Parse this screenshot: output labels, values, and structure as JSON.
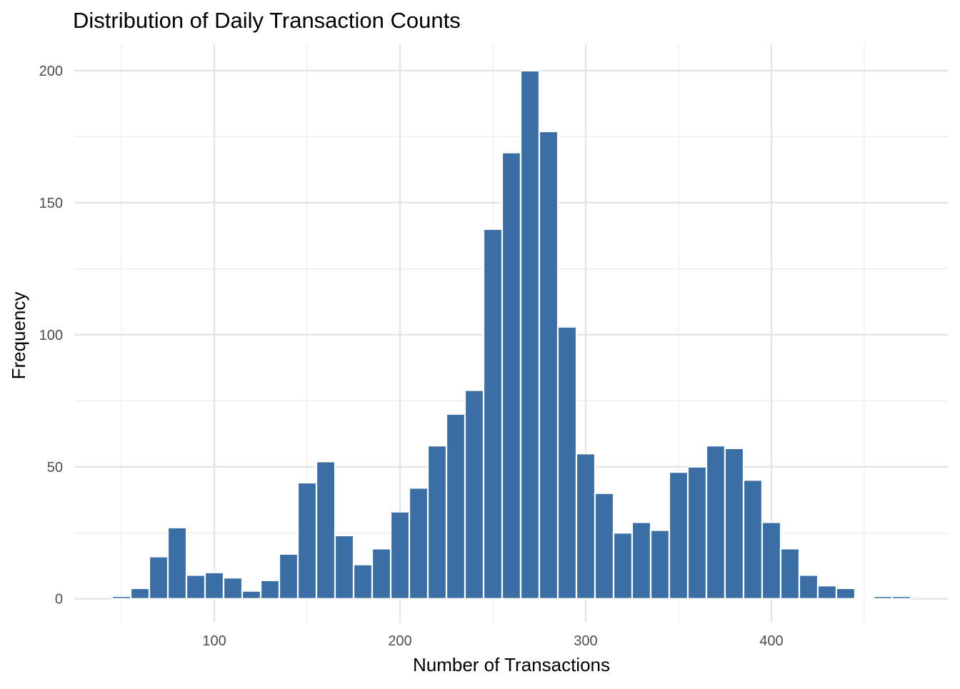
{
  "chart_data": {
    "type": "bar",
    "title": "Distribution of Daily Transaction Counts",
    "xlabel": "Number of Transactions",
    "ylabel": "Frequency",
    "bin_width": 10,
    "bin_centers": [
      50,
      60,
      70,
      80,
      90,
      100,
      110,
      120,
      130,
      140,
      150,
      160,
      170,
      180,
      190,
      200,
      210,
      220,
      230,
      240,
      250,
      260,
      270,
      280,
      290,
      300,
      310,
      320,
      330,
      340,
      350,
      360,
      370,
      380,
      390,
      400,
      410,
      420,
      430,
      440,
      450,
      460,
      470
    ],
    "values": [
      1,
      4,
      16,
      27,
      9,
      10,
      8,
      3,
      7,
      17,
      44,
      52,
      24,
      13,
      19,
      33,
      42,
      58,
      70,
      79,
      140,
      169,
      200,
      177,
      103,
      55,
      40,
      25,
      29,
      26,
      48,
      50,
      58,
      57,
      45,
      29,
      19,
      9,
      5,
      4,
      0,
      1,
      1
    ],
    "xlim": [
      24.6,
      495.4
    ],
    "ylim": [
      -9,
      210
    ],
    "xticks": [
      100,
      200,
      300,
      400
    ],
    "xticks_minor": [
      50,
      150,
      250,
      350,
      450
    ],
    "yticks": [
      0,
      50,
      100,
      150,
      200
    ],
    "yticks_minor": [
      25,
      75,
      125,
      175
    ],
    "grid": true,
    "bar_color": "#3A6EA5",
    "bar_edge_color": "#FFFFFF"
  }
}
